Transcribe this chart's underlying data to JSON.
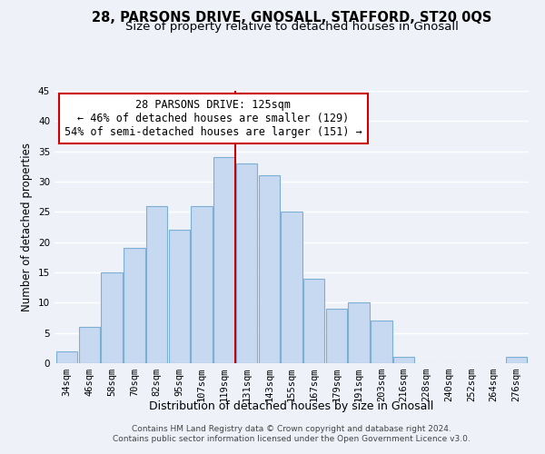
{
  "title": "28, PARSONS DRIVE, GNOSALL, STAFFORD, ST20 0QS",
  "subtitle": "Size of property relative to detached houses in Gnosall",
  "xlabel": "Distribution of detached houses by size in Gnosall",
  "ylabel": "Number of detached properties",
  "categories": [
    "34sqm",
    "46sqm",
    "58sqm",
    "70sqm",
    "82sqm",
    "95sqm",
    "107sqm",
    "119sqm",
    "131sqm",
    "143sqm",
    "155sqm",
    "167sqm",
    "179sqm",
    "191sqm",
    "203sqm",
    "216sqm",
    "228sqm",
    "240sqm",
    "252sqm",
    "264sqm",
    "276sqm"
  ],
  "values": [
    2,
    6,
    15,
    19,
    26,
    22,
    26,
    34,
    33,
    31,
    25,
    14,
    9,
    10,
    7,
    1,
    0,
    0,
    0,
    0,
    1
  ],
  "bar_color": "#c6d9f0",
  "bar_edge_color": "#7bafd4",
  "vline_x": 7.5,
  "vline_color": "#cc0000",
  "ylim": [
    0,
    45
  ],
  "yticks": [
    0,
    5,
    10,
    15,
    20,
    25,
    30,
    35,
    40,
    45
  ],
  "annotation_box_text": "28 PARSONS DRIVE: 125sqm\n← 46% of detached houses are smaller (129)\n54% of semi-detached houses are larger (151) →",
  "annotation_box_color": "#ffffff",
  "annotation_box_edge_color": "#cc0000",
  "footer_line1": "Contains HM Land Registry data © Crown copyright and database right 2024.",
  "footer_line2": "Contains public sector information licensed under the Open Government Licence v3.0.",
  "background_color": "#eef2f8",
  "grid_color": "#ffffff",
  "title_fontsize": 10.5,
  "subtitle_fontsize": 9.5,
  "ylabel_fontsize": 8.5,
  "xlabel_fontsize": 9,
  "tick_fontsize": 7.5,
  "footer_fontsize": 6.5,
  "ann_fontsize": 8.5
}
